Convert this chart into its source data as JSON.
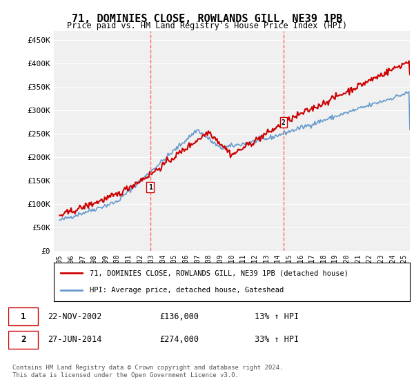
{
  "title": "71, DOMINIES CLOSE, ROWLANDS GILL, NE39 1PB",
  "subtitle": "Price paid vs. HM Land Registry's House Price Index (HPI)",
  "ylabel_ticks": [
    "£0",
    "£50K",
    "£100K",
    "£150K",
    "£200K",
    "£250K",
    "£300K",
    "£350K",
    "£400K",
    "£450K"
  ],
  "ytick_values": [
    0,
    50000,
    100000,
    150000,
    200000,
    250000,
    300000,
    350000,
    400000,
    450000
  ],
  "ylim": [
    0,
    470000
  ],
  "xlim_start": 1995.0,
  "xlim_end": 2025.5,
  "purchase1_x": 2002.9,
  "purchase1_y": 136000,
  "purchase1_label": "1",
  "purchase2_x": 2014.5,
  "purchase2_y": 274000,
  "purchase2_label": "2",
  "red_line_color": "#cc0000",
  "blue_line_color": "#6699cc",
  "vline_color": "#ff6666",
  "legend_label_red": "71, DOMINIES CLOSE, ROWLANDS GILL, NE39 1PB (detached house)",
  "legend_label_blue": "HPI: Average price, detached house, Gateshead",
  "table_row1": [
    "1",
    "22-NOV-2002",
    "£136,000",
    "13% ↑ HPI"
  ],
  "table_row2": [
    "2",
    "27-JUN-2014",
    "£274,000",
    "33% ↑ HPI"
  ],
  "footer": "Contains HM Land Registry data © Crown copyright and database right 2024.\nThis data is licensed under the Open Government Licence v3.0.",
  "background_color": "#ffffff",
  "plot_bg_color": "#f0f0f0"
}
